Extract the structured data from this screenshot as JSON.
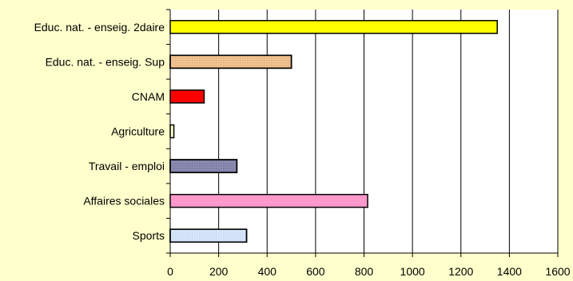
{
  "chart_data": {
    "type": "bar",
    "orientation": "horizontal",
    "categories": [
      "Educ. nat. - enseig. 2daire",
      "Educ. nat. - enseig. Sup",
      "CNAM",
      "Agriculture",
      "Travail - emploi",
      "Affaires sociales",
      "Sports"
    ],
    "values": [
      1350,
      500,
      140,
      15,
      275,
      815,
      315
    ],
    "bar_colors": [
      "#ffff00",
      "#f0b070",
      "#ff0000",
      "#ffffcc",
      "#666699",
      "#ff99cc",
      "#cce0ff"
    ],
    "patterns": [
      "solid",
      "dots",
      "solid",
      "solid",
      "dots",
      "solid",
      "dots"
    ],
    "xlim": [
      0,
      1600
    ],
    "xticks": [
      0,
      200,
      400,
      600,
      800,
      1000,
      1200,
      1400,
      1600
    ],
    "grid": "vertical",
    "legend": "none",
    "title": "",
    "xlabel": "",
    "ylabel": "",
    "colors": {
      "background": "#ffffcc",
      "plot_area": "#ffffff",
      "gridline": "#000000"
    }
  }
}
